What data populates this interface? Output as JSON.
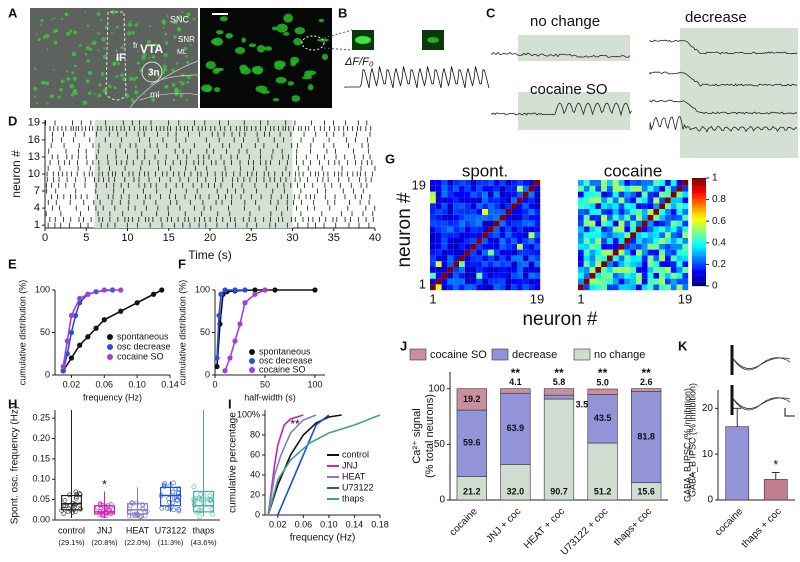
{
  "panels": {
    "A": {
      "label": "A",
      "regions": [
        "SNC",
        "SNR",
        "VTA",
        "fr",
        "ML",
        "IF",
        "3n",
        "ml"
      ]
    },
    "B": {
      "label": "B",
      "ylabel": "ΔF/F₀"
    },
    "C": {
      "label": "C",
      "traces": [
        "no change",
        "cocaine SO",
        "decrease"
      ]
    },
    "D": {
      "label": "D",
      "xlabel": "Time (s)",
      "ylabel": "neuron #",
      "xlim": [
        0,
        40
      ],
      "xticks": [
        0,
        5,
        10,
        15,
        20,
        25,
        30,
        35,
        40
      ],
      "ylim": [
        0.5,
        19.5
      ],
      "yticks": [
        1,
        4,
        7,
        10,
        13,
        16,
        19
      ],
      "shade": [
        6,
        30
      ]
    },
    "E": {
      "label": "E",
      "xlabel": "frequency (Hz)",
      "ylabel": "cumulative distribution (%)",
      "xlim": [
        0,
        0.14
      ],
      "xticks": [
        0.02,
        0.06,
        {
          "value": 0.1,
          "label": "0.10"
        },
        0.14
      ],
      "ylim": [
        0,
        100
      ],
      "yticks": [
        0,
        50,
        100
      ],
      "series": [
        {
          "name": "spontaneous",
          "color": "#111111",
          "x": [
            0.01,
            0.02,
            0.03,
            0.04,
            0.05,
            0.06,
            0.08,
            0.1,
            0.12,
            0.13
          ],
          "values": [
            5,
            20,
            35,
            45,
            55,
            65,
            75,
            85,
            95,
            100
          ]
        },
        {
          "name": "osc decrease",
          "color": "#2a4de0",
          "x": [
            0.01,
            0.015,
            0.02,
            0.025,
            0.03,
            0.04,
            0.05,
            0.07
          ],
          "values": [
            5,
            25,
            50,
            70,
            85,
            95,
            98,
            100
          ]
        },
        {
          "name": "cocaine SO",
          "color": "#a040d8",
          "x": [
            0.01,
            0.015,
            0.02,
            0.03,
            0.04,
            0.06,
            0.08
          ],
          "values": [
            10,
            40,
            70,
            90,
            95,
            100,
            100
          ]
        }
      ]
    },
    "F": {
      "label": "F",
      "xlabel": "half-width (s)",
      "ylabel": "cumulative distribution (%)",
      "xlim": [
        0,
        110
      ],
      "xticks": [
        0,
        50,
        100
      ],
      "ylim": [
        0,
        100
      ],
      "yticks": [
        0,
        50,
        100
      ],
      "series": [
        {
          "name": "spontaneous",
          "color": "#111111",
          "x": [
            2,
            5,
            8,
            12,
            20,
            40,
            60,
            100
          ],
          "values": [
            10,
            60,
            95,
            98,
            99,
            100,
            100,
            100
          ]
        },
        {
          "name": "osc decrease",
          "color": "#2a4de0",
          "x": [
            2,
            4,
            6,
            10,
            20,
            30
          ],
          "values": [
            20,
            70,
            95,
            100,
            100,
            100
          ]
        },
        {
          "name": "cocaine SO",
          "color": "#a040d8",
          "x": [
            10,
            15,
            20,
            25,
            30,
            40,
            50
          ],
          "values": [
            5,
            20,
            40,
            60,
            85,
            95,
            100
          ]
        }
      ]
    },
    "G": {
      "label": "G",
      "titles": [
        "spont.",
        "cocaine"
      ],
      "xlabel": "neuron #",
      "ylabel": "neuron #",
      "ticks": [
        1,
        19
      ],
      "cbticks": [
        0,
        0.2,
        0.4,
        0.6,
        0.8,
        1
      ]
    },
    "H": {
      "label": "H",
      "ylabel": "Spont. osc. frequency (Hz)",
      "ylim": [
        0,
        0.27
      ],
      "yticks": [
        {
          "value": 0,
          "label": "0.00"
        },
        {
          "value": 0.05,
          "label": "0.05"
        },
        {
          "value": 0.1,
          "label": "0.10"
        },
        {
          "value": 0.15,
          "label": "0.15"
        },
        {
          "value": 0.2,
          "label": "0.20"
        },
        {
          "value": 0.25,
          "label": "0.25"
        }
      ],
      "categories": [
        "control",
        "JNJ",
        "HEAT",
        "U73122",
        "thaps"
      ],
      "percents": [
        "(29.1%)",
        "(20.8%)",
        "(22.0%)",
        "(11.3%)",
        "(43.6%)"
      ],
      "colors": [
        "#222222",
        "#d020b0",
        "#8080c8",
        "#2050e0",
        "#40b0a0"
      ],
      "min": [
        0.005,
        0.005,
        0.005,
        0.02,
        0.01
      ],
      "q1": [
        0.025,
        0.015,
        0.015,
        0.035,
        0.02
      ],
      "median": [
        0.04,
        0.02,
        0.025,
        0.06,
        0.035
      ],
      "q3": [
        0.06,
        0.035,
        0.04,
        0.08,
        0.07
      ],
      "max": [
        0.27,
        0.07,
        0.08,
        0.095,
        0.27
      ],
      "annotation": "*"
    },
    "I": {
      "label": "I",
      "xlabel": "frequency (Hz)",
      "ylabel": "cumulative percentage",
      "xlim": [
        0,
        0.18
      ],
      "xticks": [
        0.02,
        0.06,
        {
          "value": 0.1,
          "label": "0.10"
        },
        0.14,
        0.18
      ],
      "ylim": [
        0,
        105
      ],
      "yticks": [
        0,
        20,
        40,
        60,
        80,
        {
          "value": 100,
          "label": "100%"
        }
      ],
      "annotation": "**",
      "series": [
        {
          "name": "control",
          "color": "#111111",
          "x": [
            0.005,
            0.02,
            0.04,
            0.06,
            0.08,
            0.1,
            0.12
          ],
          "values": [
            0,
            30,
            60,
            80,
            92,
            98,
            100
          ]
        },
        {
          "name": "JNJ",
          "color": "#d020b0",
          "x": [
            0.005,
            0.015,
            0.02,
            0.03,
            0.04,
            0.06
          ],
          "values": [
            0,
            50,
            70,
            90,
            96,
            100
          ]
        },
        {
          "name": "HEAT",
          "color": "#8080c8",
          "x": [
            0.005,
            0.015,
            0.025,
            0.04,
            0.06,
            0.08
          ],
          "values": [
            0,
            40,
            60,
            82,
            95,
            100
          ]
        },
        {
          "name": "U73122",
          "color": "#2050e0",
          "x": [
            0.02,
            0.04,
            0.06,
            0.08,
            0.1
          ],
          "values": [
            0,
            30,
            60,
            90,
            100
          ]
        },
        {
          "name": "thaps",
          "color": "#40a090",
          "x": [
            0.005,
            0.02,
            0.04,
            0.07,
            0.1,
            0.14,
            0.18
          ],
          "values": [
            0,
            35,
            55,
            72,
            82,
            90,
            100
          ]
        }
      ]
    },
    "J": {
      "label": "J",
      "ylabel": [
        "Ca²⁺ signal",
        "(% total neurons)"
      ],
      "ylim": [
        0,
        115
      ],
      "yticks": [
        0,
        50,
        100
      ],
      "categories": [
        "cocaine",
        "JNJ + coc",
        "HEAT + coc",
        "U73122 + coc",
        "thaps+ coc"
      ],
      "series": [
        {
          "name": "no change",
          "color": "#cfdccf",
          "values": [
            21.2,
            32.0,
            90.7,
            51.2,
            15.6
          ],
          "value_labels": [
            "21.2",
            "32.0",
            "90.7",
            "51.2",
            "15.6"
          ]
        },
        {
          "name": "decrease",
          "color": "#9393d8",
          "values": [
            59.6,
            63.9,
            3.5,
            43.5,
            81.8
          ],
          "value_labels": [
            "59.6",
            "63.9",
            "3.5",
            "43.5",
            "81.8"
          ]
        },
        {
          "name": "cocaine SO",
          "color": "#c8909e",
          "values": [
            19.2,
            4.1,
            5.8,
            5.0,
            2.6
          ],
          "value_labels": [
            "19.2",
            "4.1",
            "5.8",
            "5.0",
            "2.6"
          ]
        }
      ],
      "legend_order": [
        2,
        1,
        0
      ],
      "annotations": [
        null,
        "**",
        "**",
        "**",
        "**"
      ]
    },
    "K": {
      "label": "K",
      "ylabel": "GABA_B IPSC (% inhibition)",
      "ylim": [
        0,
        24
      ],
      "yticks": [
        0,
        10,
        20
      ],
      "categories": [
        "cocaine",
        "thaps + coc"
      ],
      "values": [
        16,
        4.5
      ],
      "errors": [
        4,
        1.5
      ],
      "colors": [
        "#9393d8",
        "#c08090"
      ],
      "annotation": "*"
    }
  }
}
